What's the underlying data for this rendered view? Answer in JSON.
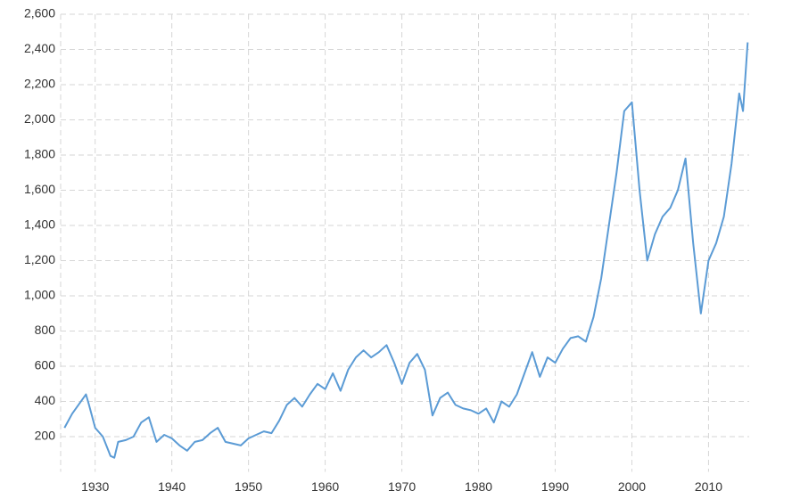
{
  "chart_data": {
    "type": "line",
    "x": [
      1926,
      1927,
      1928.8,
      1929.2,
      1930,
      1931,
      1932,
      1932.5,
      1933,
      1934,
      1935,
      1936,
      1937,
      1938,
      1939,
      1940,
      1941,
      1942,
      1943,
      1944,
      1945,
      1946,
      1947,
      1948,
      1949,
      1950,
      1951,
      1952,
      1953,
      1954,
      1955,
      1956,
      1957,
      1958,
      1959,
      1960,
      1961,
      1962,
      1963,
      1964,
      1965,
      1966,
      1967,
      1968,
      1969,
      1970,
      1971,
      1972,
      1973,
      1974,
      1975,
      1976,
      1977,
      1978,
      1979,
      1980,
      1981,
      1982,
      1983,
      1984,
      1985,
      1986,
      1987,
      1988,
      1989,
      1990,
      1991,
      1992,
      1993,
      1994,
      1995,
      1996,
      1997,
      1998,
      1999,
      2000,
      2001,
      2002,
      2003,
      2004,
      2005,
      2006,
      2007,
      2008,
      2009,
      2010,
      2011,
      2012,
      2013,
      2014,
      2014.5,
      2015.1
    ],
    "series": [
      {
        "color": "#5b9bd5",
        "values": [
          250,
          330,
          440,
          380,
          250,
          200,
          90,
          80,
          170,
          180,
          200,
          280,
          310,
          170,
          210,
          190,
          150,
          120,
          170,
          180,
          220,
          250,
          170,
          160,
          150,
          190,
          210,
          230,
          220,
          290,
          380,
          420,
          370,
          440,
          500,
          470,
          560,
          460,
          580,
          650,
          690,
          650,
          680,
          720,
          620,
          500,
          620,
          670,
          580,
          320,
          420,
          450,
          380,
          360,
          350,
          330,
          360,
          280,
          400,
          370,
          440,
          560,
          680,
          540,
          650,
          620,
          700,
          760,
          770,
          740,
          880,
          1100,
          1400,
          1700,
          2050,
          2100,
          1600,
          1200,
          1350,
          1450,
          1500,
          1600,
          1780,
          1300,
          900,
          1200,
          1300,
          1450,
          1750,
          2150,
          2050,
          2440
        ]
      }
    ],
    "xlim": [
      1925.5,
      2015.3
    ],
    "ylim": [
      0,
      2600
    ],
    "xticks": [
      1930,
      1940,
      1950,
      1960,
      1970,
      1980,
      1990,
      2000,
      2010
    ],
    "yticks": [
      200,
      400,
      600,
      800,
      {
        "value": 1000,
        "label": "1,000"
      },
      {
        "value": 1200,
        "label": "1,200"
      },
      {
        "value": 1400,
        "label": "1,400"
      },
      {
        "value": 1600,
        "label": "1,600"
      },
      {
        "value": 1800,
        "label": "1,800"
      },
      {
        "value": 2000,
        "label": "2,000"
      },
      {
        "value": 2200,
        "label": "2,200"
      },
      {
        "value": 2400,
        "label": "2,400"
      },
      {
        "value": 2600,
        "label": "2,600"
      }
    ],
    "grid": true
  }
}
